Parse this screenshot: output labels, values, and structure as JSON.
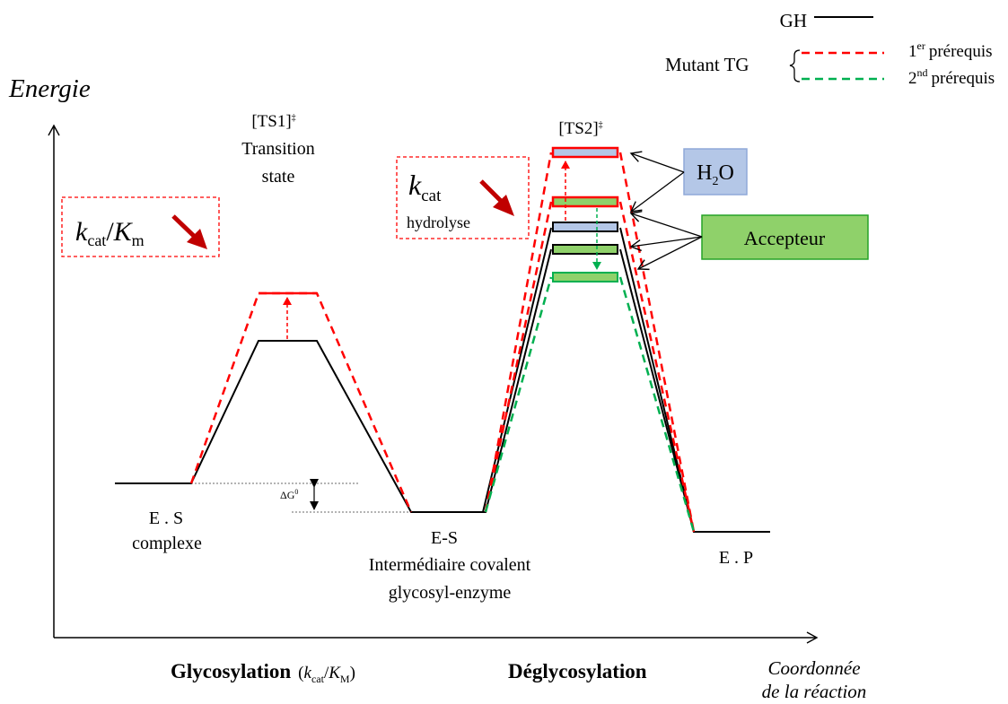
{
  "axes": {
    "y_label": "Energie",
    "x_label_line1": "Coordonnée",
    "x_label_line2": "de la réaction"
  },
  "legend": {
    "gh": "GH",
    "mutant": "Mutant TG",
    "req1_sup": "er",
    "req1_text": "prérequis",
    "req1_num": "1",
    "req2_num": "2",
    "req2_sup": "nd",
    "req2_text": "prérequis"
  },
  "kcat_km_box": {
    "k": "k",
    "cat": "cat",
    "slash": "/",
    "K": "K",
    "m": "m"
  },
  "kcat_box": {
    "k": "k",
    "cat": "cat",
    "hydrolyse": "hydrolyse"
  },
  "ts1": {
    "label": "[TS1]",
    "dagger": "‡",
    "line2": "Transition",
    "line3": "state"
  },
  "ts2": {
    "label": "[TS2]",
    "dagger": "‡"
  },
  "h2o_box": {
    "H": "H",
    "sub": "2",
    "O": "O"
  },
  "accepteur_box": {
    "label": "Accepteur"
  },
  "delta_g": {
    "label": "ΔG",
    "sup": "0"
  },
  "states": {
    "es_line1": "E . S",
    "es_line2": "complexe",
    "ecov_line1": "E-S",
    "ecov_line2": "Intermédiaire covalent",
    "ecov_line3": "glycosyl-enzyme",
    "ep": "E . P"
  },
  "phases": {
    "glyco": "Glycosylation",
    "glyco_paren_open": "(",
    "glyco_k": "k",
    "glyco_cat": "cat",
    "glyco_slash": "/",
    "glyco_K": "K",
    "glyco_M": "M",
    "glyco_paren_close": ")",
    "deglyco": "Déglycosylation"
  },
  "colors": {
    "gh": "#000000",
    "req1": "#ff0000",
    "req2": "#00b050",
    "h2o_fill": "#b4c7e7",
    "h2o_stroke": "#8fa9d8",
    "acc_fill": "#8fd16a",
    "acc_stroke": "#27a327",
    "arrow_dark_red": "#c00000"
  }
}
